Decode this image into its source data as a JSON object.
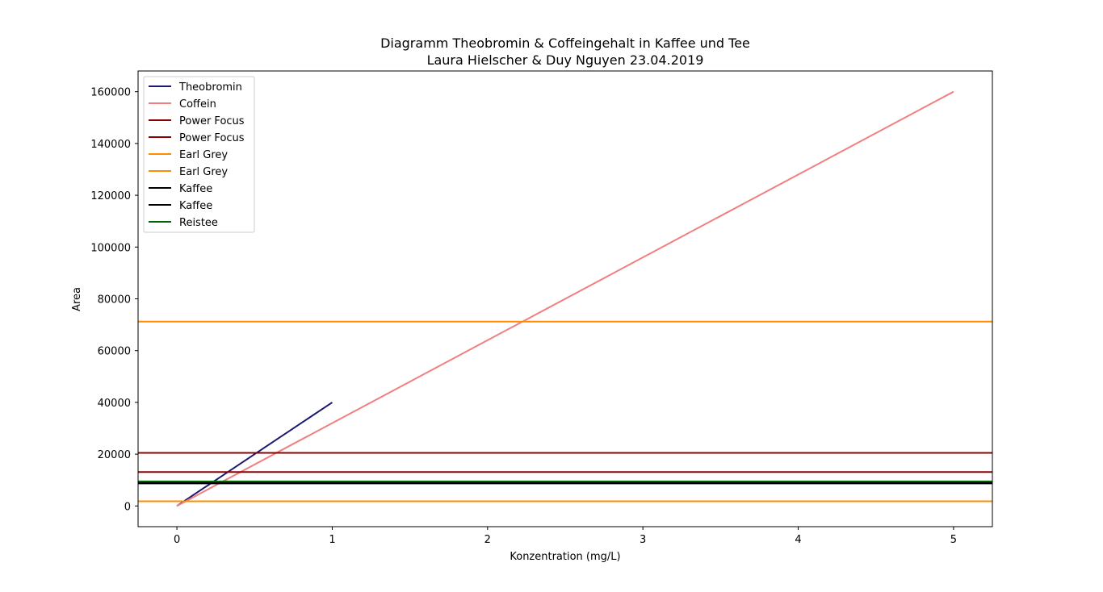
{
  "chart_data": {
    "type": "line",
    "title_line1": "Diagramm Theobromin & Coffeingehalt in Kaffee und Tee",
    "title_line2": "Laura Hielscher & Duy Nguyen 23.04.2019",
    "xlabel": "Konzentration (mg/L)",
    "ylabel": "Area",
    "xlim": [
      -0.25,
      5.25
    ],
    "ylim": [
      -8000,
      168000
    ],
    "xticks": [
      0,
      1,
      2,
      3,
      4,
      5
    ],
    "yticks": [
      0,
      20000,
      40000,
      60000,
      80000,
      100000,
      120000,
      140000,
      160000
    ],
    "legend_position": "upper-left",
    "grid": false,
    "series": [
      {
        "name": "Theobromin",
        "kind": "line",
        "color": "#191970",
        "x": [
          0,
          1
        ],
        "y": [
          0,
          40000
        ]
      },
      {
        "name": "Coffein",
        "kind": "line",
        "color": "#f08080",
        "x": [
          0,
          5
        ],
        "y": [
          0,
          160000
        ]
      },
      {
        "name": "Power Focus",
        "kind": "hline",
        "color": "#8b0000",
        "value": 20500
      },
      {
        "name": "Power Focus",
        "kind": "hline",
        "color": "#8b0000",
        "value": 13100
      },
      {
        "name": "Earl Grey",
        "kind": "hline",
        "color": "#ff8c00",
        "value": 71200
      },
      {
        "name": "Earl Grey",
        "kind": "hline",
        "color": "#ff8c00",
        "value": 1800
      },
      {
        "name": "Kaffee",
        "kind": "hline",
        "color": "#000000",
        "value": 9000
      },
      {
        "name": "Kaffee",
        "kind": "hline",
        "color": "#000000",
        "value": 8700
      },
      {
        "name": "Reistee",
        "kind": "hline",
        "color": "#006400",
        "value": 9500
      }
    ]
  }
}
